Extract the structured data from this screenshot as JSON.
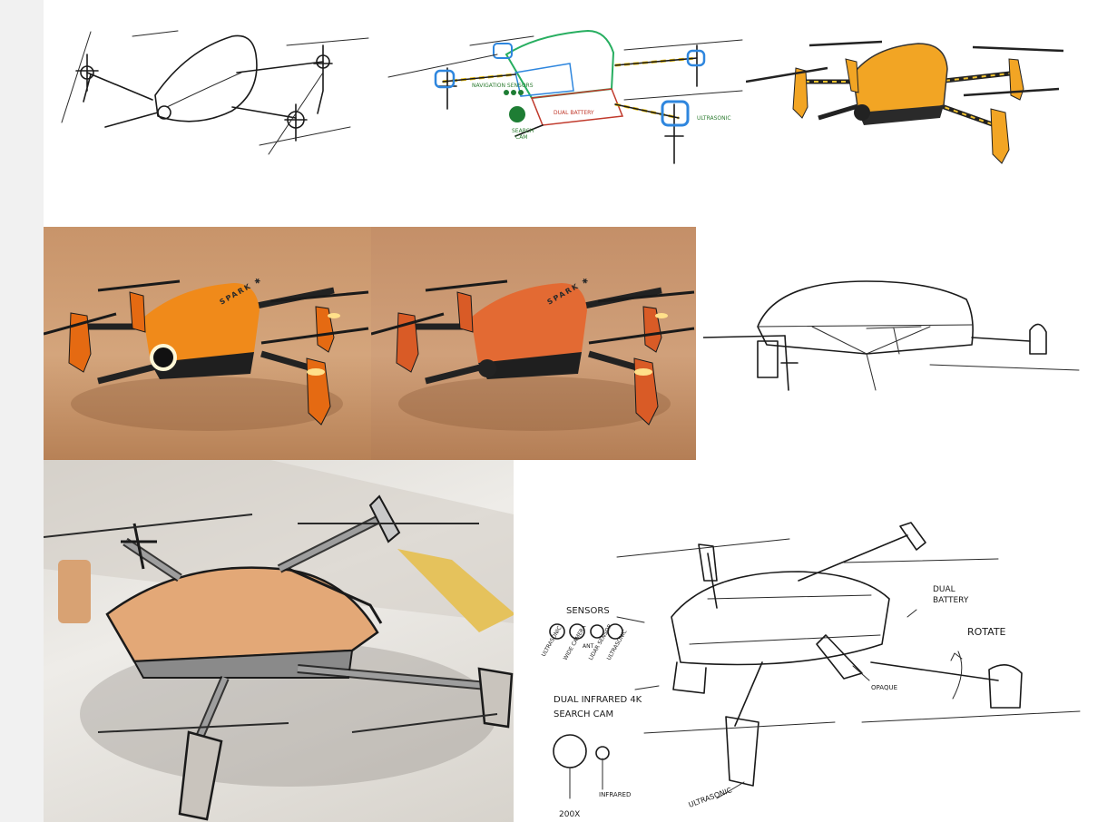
{
  "colors": {
    "sidebar": "#f1f1f1",
    "render_background": "#c8946a",
    "body_orange": "#f08a1a",
    "body_red_orange": "#e36a33",
    "body_yellow": "#f2a524",
    "dark_parts": "#2a2a2a",
    "sketch_line": "#1a1a1a",
    "foam_model": "#e3a877"
  },
  "panels": [
    {
      "id": "line-sketch"
    },
    {
      "id": "annotated-color-sketch"
    },
    {
      "id": "yellow-render-sketch"
    },
    {
      "id": "orange-render-lens"
    },
    {
      "id": "orange-render-camera"
    },
    {
      "id": "side-line-sketch"
    },
    {
      "id": "foam-model-photo-overlay"
    },
    {
      "id": "annotated-final-sketch"
    }
  ],
  "renders": {
    "brand_mark": "SPARK ✱"
  },
  "color_sketch_notes": {
    "sensor_note": "NAVIGATION SENSORS",
    "battery_note": "DUAL BATTERY",
    "ultrasonic_note": "ULTRASONIC",
    "cam_note_line1": "SEARCH",
    "cam_note_line2": "CAM"
  },
  "final_sketch_notes": {
    "sensors": "SENSORS",
    "sensor_labels": [
      "ULTRASONIC",
      "WIDE CAMERA",
      "ANT",
      "LIDAR SENSOR",
      "ULTRASONIC"
    ],
    "search_cam_line1": "DUAL INFRARED 4K",
    "search_cam_line2": "SEARCH CAM",
    "dual_battery_line1": "DUAL",
    "dual_battery_line2": "BATTERY",
    "rotate": "ROTATE",
    "opaque": "OPAQUE",
    "ultrasonic": "ULTRASONIC",
    "infrared": "INFRARED",
    "zoom": "200X"
  }
}
